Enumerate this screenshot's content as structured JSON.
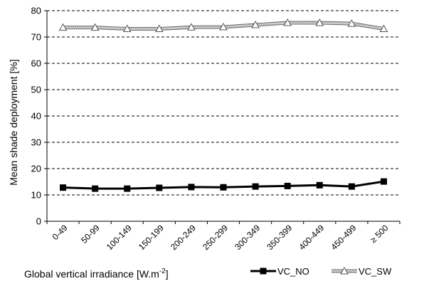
{
  "chart_data": {
    "type": "line",
    "title": "",
    "ylabel": "Mean shade deployment [%]",
    "xlabel": {
      "main": "Global vertical irradiance [W.m",
      "superscript": "-2",
      "suffix": "]"
    },
    "ylim": [
      0,
      80
    ],
    "yticks": [
      0,
      10,
      20,
      30,
      40,
      50,
      60,
      70,
      80
    ],
    "grid": "horizontal dashed",
    "legend_position": "bottom-right",
    "categories": [
      "0-49",
      "50-99",
      "100-149",
      "150-199",
      "200-249",
      "250-299",
      "300-349",
      "350-399",
      "400-449",
      "450-499",
      "≥ 500"
    ],
    "series": [
      {
        "name": "VC_NO",
        "marker": "square",
        "color": "#000000",
        "values": [
          12.8,
          12.4,
          12.4,
          12.7,
          13.0,
          12.9,
          13.2,
          13.4,
          13.7,
          13.2,
          15.1
        ]
      },
      {
        "name": "VC_SW",
        "marker": "triangle",
        "color": "#9a9a9a",
        "values": [
          73.6,
          73.6,
          73.1,
          73.1,
          73.7,
          73.8,
          74.6,
          75.4,
          75.4,
          75.1,
          73.1
        ]
      }
    ]
  }
}
